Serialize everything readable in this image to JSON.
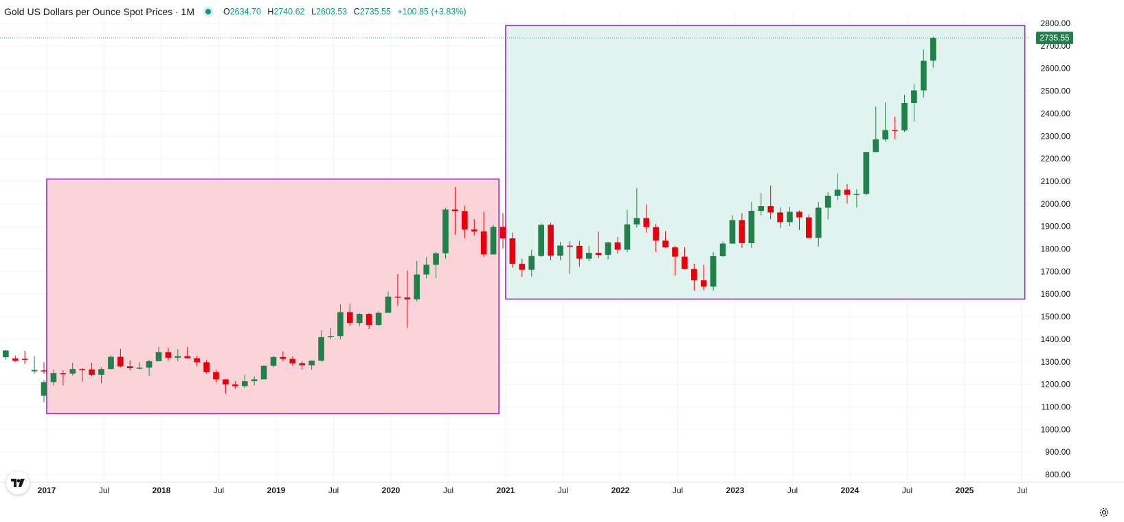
{
  "header": {
    "title": "Gold US Dollars per Ounce Spot Prices · 1M",
    "ohlc": {
      "o_label": "O",
      "o": "2634.70",
      "h_label": "H",
      "h": "2740.62",
      "l_label": "L",
      "l": "2603.53",
      "c_label": "C",
      "c": "2735.55",
      "change": "+100.85 (+3.83%)"
    }
  },
  "colors": {
    "up": "#22804a",
    "down": "#e6000b",
    "accent": "#089981",
    "rect_border": "#9c27b0",
    "rect1_fill": "#fad4d8",
    "rect2_fill": "#e0f3ef"
  },
  "icons": {
    "logo": "tradingview-logo-icon",
    "settings": "gear-icon"
  },
  "chart_data": {
    "type": "candlestick",
    "interval": "1M",
    "ylim": [
      800,
      2800
    ],
    "y_ticks": [
      "800.00",
      "900.00",
      "1000.00",
      "1100.00",
      "1200.00",
      "1300.00",
      "1400.00",
      "1500.00",
      "1600.00",
      "1700.00",
      "1800.00",
      "1900.00",
      "2000.00",
      "2100.00",
      "2200.00",
      "2300.00",
      "2400.00",
      "2500.00",
      "2600.00",
      "2700.00",
      "2800.00"
    ],
    "x_ticks": [
      {
        "label": "2017",
        "date": "2017-01",
        "bold": true
      },
      {
        "label": "Jul",
        "date": "2017-07",
        "bold": false
      },
      {
        "label": "2018",
        "date": "2018-01",
        "bold": true
      },
      {
        "label": "Jul",
        "date": "2018-07",
        "bold": false
      },
      {
        "label": "2019",
        "date": "2019-01",
        "bold": true
      },
      {
        "label": "Jul",
        "date": "2019-07",
        "bold": false
      },
      {
        "label": "2020",
        "date": "2020-01",
        "bold": true
      },
      {
        "label": "Jul",
        "date": "2020-07",
        "bold": false
      },
      {
        "label": "2021",
        "date": "2021-01",
        "bold": true
      },
      {
        "label": "Jul",
        "date": "2021-07",
        "bold": false
      },
      {
        "label": "2022",
        "date": "2022-01",
        "bold": true
      },
      {
        "label": "Jul",
        "date": "2022-07",
        "bold": false
      },
      {
        "label": "2023",
        "date": "2023-01",
        "bold": true
      },
      {
        "label": "Jul",
        "date": "2023-07",
        "bold": false
      },
      {
        "label": "2024",
        "date": "2024-01",
        "bold": true
      },
      {
        "label": "Jul",
        "date": "2024-07",
        "bold": false
      },
      {
        "label": "2025",
        "date": "2025-01",
        "bold": true
      },
      {
        "label": "Jul",
        "date": "2025-07",
        "bold": false
      }
    ],
    "last_price_label": "2735.55",
    "last_price": 2735.55,
    "rectangles": [
      {
        "start": "2017-01",
        "end": "2020-12",
        "top": 2110,
        "bottom": 1070,
        "style": "red"
      },
      {
        "start": "2021-01",
        "end": "2025-07",
        "top": 2790,
        "bottom": 1578,
        "style": "green"
      }
    ],
    "candles": [
      {
        "date": "2016-09",
        "o": 1320,
        "h": 1352,
        "l": 1310,
        "c": 1350
      },
      {
        "date": "2016-10",
        "o": 1315,
        "h": 1328,
        "l": 1300,
        "c": 1305
      },
      {
        "date": "2016-11",
        "o": 1313,
        "h": 1348,
        "l": 1290,
        "c": 1308
      },
      {
        "date": "2016-12",
        "o": 1258,
        "h": 1325,
        "l": 1248,
        "c": 1264
      },
      {
        "date": "2016-13",
        "o": 1262,
        "h": 1298,
        "l": 1248,
        "c": 1260
      },
      {
        "date": "2017-01",
        "o": 1150,
        "h": 1220,
        "l": 1120,
        "c": 1210
      },
      {
        "date": "2017-02",
        "o": 1210,
        "h": 1265,
        "l": 1195,
        "c": 1250
      },
      {
        "date": "2017-03",
        "o": 1250,
        "h": 1262,
        "l": 1195,
        "c": 1248
      },
      {
        "date": "2017-04",
        "o": 1248,
        "h": 1295,
        "l": 1240,
        "c": 1268
      },
      {
        "date": "2017-05",
        "o": 1268,
        "h": 1272,
        "l": 1212,
        "c": 1266
      },
      {
        "date": "2017-06",
        "o": 1266,
        "h": 1296,
        "l": 1236,
        "c": 1242
      },
      {
        "date": "2017-07",
        "o": 1242,
        "h": 1275,
        "l": 1205,
        "c": 1268
      },
      {
        "date": "2017-08",
        "o": 1268,
        "h": 1330,
        "l": 1266,
        "c": 1322
      },
      {
        "date": "2017-09",
        "o": 1322,
        "h": 1358,
        "l": 1275,
        "c": 1280
      },
      {
        "date": "2017-10",
        "o": 1280,
        "h": 1306,
        "l": 1262,
        "c": 1272
      },
      {
        "date": "2017-11",
        "o": 1272,
        "h": 1298,
        "l": 1265,
        "c": 1274
      },
      {
        "date": "2017-12",
        "o": 1274,
        "h": 1308,
        "l": 1237,
        "c": 1303
      },
      {
        "date": "2018-01",
        "o": 1303,
        "h": 1366,
        "l": 1302,
        "c": 1343
      },
      {
        "date": "2018-02",
        "o": 1343,
        "h": 1362,
        "l": 1306,
        "c": 1318
      },
      {
        "date": "2018-03",
        "o": 1318,
        "h": 1356,
        "l": 1302,
        "c": 1325
      },
      {
        "date": "2018-04",
        "o": 1325,
        "h": 1366,
        "l": 1314,
        "c": 1316
      },
      {
        "date": "2018-05",
        "o": 1316,
        "h": 1326,
        "l": 1282,
        "c": 1298
      },
      {
        "date": "2018-06",
        "o": 1298,
        "h": 1308,
        "l": 1248,
        "c": 1254
      },
      {
        "date": "2018-07",
        "o": 1254,
        "h": 1265,
        "l": 1210,
        "c": 1222
      },
      {
        "date": "2018-08",
        "o": 1222,
        "h": 1222,
        "l": 1160,
        "c": 1200
      },
      {
        "date": "2018-09",
        "o": 1200,
        "h": 1214,
        "l": 1180,
        "c": 1192
      },
      {
        "date": "2018-10",
        "o": 1192,
        "h": 1243,
        "l": 1183,
        "c": 1214
      },
      {
        "date": "2018-11",
        "o": 1214,
        "h": 1236,
        "l": 1196,
        "c": 1222
      },
      {
        "date": "2018-12",
        "o": 1222,
        "h": 1284,
        "l": 1222,
        "c": 1282
      },
      {
        "date": "2019-01",
        "o": 1282,
        "h": 1326,
        "l": 1276,
        "c": 1321
      },
      {
        "date": "2019-02",
        "o": 1321,
        "h": 1346,
        "l": 1303,
        "c": 1313
      },
      {
        "date": "2019-03",
        "o": 1313,
        "h": 1324,
        "l": 1282,
        "c": 1293
      },
      {
        "date": "2019-04",
        "o": 1293,
        "h": 1303,
        "l": 1266,
        "c": 1284
      },
      {
        "date": "2019-05",
        "o": 1284,
        "h": 1306,
        "l": 1266,
        "c": 1305
      },
      {
        "date": "2019-06",
        "o": 1305,
        "h": 1439,
        "l": 1300,
        "c": 1409
      },
      {
        "date": "2019-07",
        "o": 1409,
        "h": 1451,
        "l": 1400,
        "c": 1414
      },
      {
        "date": "2019-08",
        "o": 1414,
        "h": 1555,
        "l": 1400,
        "c": 1520
      },
      {
        "date": "2019-09",
        "o": 1520,
        "h": 1557,
        "l": 1458,
        "c": 1472
      },
      {
        "date": "2019-10",
        "o": 1472,
        "h": 1516,
        "l": 1458,
        "c": 1512
      },
      {
        "date": "2019-11",
        "o": 1512,
        "h": 1516,
        "l": 1445,
        "c": 1463
      },
      {
        "date": "2019-12",
        "o": 1463,
        "h": 1525,
        "l": 1459,
        "c": 1517
      },
      {
        "date": "2020-01",
        "o": 1517,
        "h": 1611,
        "l": 1517,
        "c": 1589
      },
      {
        "date": "2020-02",
        "o": 1589,
        "h": 1689,
        "l": 1548,
        "c": 1585
      },
      {
        "date": "2020-03",
        "o": 1585,
        "h": 1704,
        "l": 1451,
        "c": 1577
      },
      {
        "date": "2020-04",
        "o": 1577,
        "h": 1747,
        "l": 1568,
        "c": 1687
      },
      {
        "date": "2020-05",
        "o": 1687,
        "h": 1765,
        "l": 1670,
        "c": 1730
      },
      {
        "date": "2020-06",
        "o": 1730,
        "h": 1789,
        "l": 1671,
        "c": 1781
      },
      {
        "date": "2020-07",
        "o": 1781,
        "h": 1983,
        "l": 1757,
        "c": 1975
      },
      {
        "date": "2020-08",
        "o": 1975,
        "h": 2074,
        "l": 1863,
        "c": 1968
      },
      {
        "date": "2020-09",
        "o": 1968,
        "h": 1992,
        "l": 1848,
        "c": 1886
      },
      {
        "date": "2020-10",
        "o": 1886,
        "h": 1933,
        "l": 1860,
        "c": 1878
      },
      {
        "date": "2020-11",
        "o": 1878,
        "h": 1965,
        "l": 1764,
        "c": 1776
      },
      {
        "date": "2020-12",
        "o": 1776,
        "h": 1907,
        "l": 1775,
        "c": 1898
      },
      {
        "date": "2021-01",
        "o": 1898,
        "h": 1959,
        "l": 1802,
        "c": 1847
      },
      {
        "date": "2021-02",
        "o": 1847,
        "h": 1872,
        "l": 1717,
        "c": 1734
      },
      {
        "date": "2021-03",
        "o": 1734,
        "h": 1756,
        "l": 1676,
        "c": 1708
      },
      {
        "date": "2021-04",
        "o": 1708,
        "h": 1797,
        "l": 1678,
        "c": 1769
      },
      {
        "date": "2021-05",
        "o": 1769,
        "h": 1913,
        "l": 1765,
        "c": 1907
      },
      {
        "date": "2021-06",
        "o": 1907,
        "h": 1916,
        "l": 1750,
        "c": 1770
      },
      {
        "date": "2021-07",
        "o": 1770,
        "h": 1832,
        "l": 1750,
        "c": 1815
      },
      {
        "date": "2021-08",
        "o": 1815,
        "h": 1834,
        "l": 1690,
        "c": 1814
      },
      {
        "date": "2021-09",
        "o": 1814,
        "h": 1835,
        "l": 1721,
        "c": 1757
      },
      {
        "date": "2021-10",
        "o": 1757,
        "h": 1814,
        "l": 1746,
        "c": 1783
      },
      {
        "date": "2021-11",
        "o": 1783,
        "h": 1877,
        "l": 1759,
        "c": 1774
      },
      {
        "date": "2021-12",
        "o": 1774,
        "h": 1831,
        "l": 1753,
        "c": 1829
      },
      {
        "date": "2022-01",
        "o": 1829,
        "h": 1853,
        "l": 1780,
        "c": 1797
      },
      {
        "date": "2022-02",
        "o": 1797,
        "h": 1974,
        "l": 1786,
        "c": 1909
      },
      {
        "date": "2022-03",
        "o": 1909,
        "h": 2070,
        "l": 1895,
        "c": 1937
      },
      {
        "date": "2022-04",
        "o": 1937,
        "h": 1998,
        "l": 1872,
        "c": 1897
      },
      {
        "date": "2022-05",
        "o": 1897,
        "h": 1910,
        "l": 1787,
        "c": 1837
      },
      {
        "date": "2022-06",
        "o": 1837,
        "h": 1879,
        "l": 1805,
        "c": 1807
      },
      {
        "date": "2022-07",
        "o": 1807,
        "h": 1814,
        "l": 1681,
        "c": 1766
      },
      {
        "date": "2022-08",
        "o": 1766,
        "h": 1807,
        "l": 1709,
        "c": 1711
      },
      {
        "date": "2022-09",
        "o": 1711,
        "h": 1735,
        "l": 1615,
        "c": 1661
      },
      {
        "date": "2022-10",
        "o": 1661,
        "h": 1730,
        "l": 1617,
        "c": 1633
      },
      {
        "date": "2022-11",
        "o": 1633,
        "h": 1786,
        "l": 1616,
        "c": 1768
      },
      {
        "date": "2022-12",
        "o": 1768,
        "h": 1833,
        "l": 1765,
        "c": 1824
      },
      {
        "date": "2023-01",
        "o": 1824,
        "h": 1949,
        "l": 1823,
        "c": 1928
      },
      {
        "date": "2023-02",
        "o": 1928,
        "h": 1959,
        "l": 1805,
        "c": 1826
      },
      {
        "date": "2023-03",
        "o": 1826,
        "h": 2009,
        "l": 1804,
        "c": 1969
      },
      {
        "date": "2023-04",
        "o": 1969,
        "h": 2048,
        "l": 1949,
        "c": 1990
      },
      {
        "date": "2023-05",
        "o": 1990,
        "h": 2081,
        "l": 1932,
        "c": 1962
      },
      {
        "date": "2023-06",
        "o": 1962,
        "h": 1985,
        "l": 1893,
        "c": 1919
      },
      {
        "date": "2023-07",
        "o": 1919,
        "h": 1987,
        "l": 1902,
        "c": 1965
      },
      {
        "date": "2023-08",
        "o": 1965,
        "h": 1970,
        "l": 1884,
        "c": 1940
      },
      {
        "date": "2023-09",
        "o": 1940,
        "h": 1953,
        "l": 1848,
        "c": 1849
      },
      {
        "date": "2023-10",
        "o": 1849,
        "h": 2009,
        "l": 1810,
        "c": 1983
      },
      {
        "date": "2023-11",
        "o": 1983,
        "h": 2052,
        "l": 1931,
        "c": 2036
      },
      {
        "date": "2023-12",
        "o": 2036,
        "h": 2135,
        "l": 2016,
        "c": 2063
      },
      {
        "date": "2024-01",
        "o": 2063,
        "h": 2088,
        "l": 2001,
        "c": 2040
      },
      {
        "date": "2024-02",
        "o": 2040,
        "h": 2065,
        "l": 1984,
        "c": 2044
      },
      {
        "date": "2024-03",
        "o": 2044,
        "h": 2222,
        "l": 2039,
        "c": 2230
      },
      {
        "date": "2024-04",
        "o": 2230,
        "h": 2431,
        "l": 2228,
        "c": 2286
      },
      {
        "date": "2024-05",
        "o": 2286,
        "h": 2450,
        "l": 2277,
        "c": 2327
      },
      {
        "date": "2024-06",
        "o": 2327,
        "h": 2387,
        "l": 2286,
        "c": 2326
      },
      {
        "date": "2024-07",
        "o": 2326,
        "h": 2483,
        "l": 2318,
        "c": 2447
      },
      {
        "date": "2024-08",
        "o": 2447,
        "h": 2531,
        "l": 2364,
        "c": 2503
      },
      {
        "date": "2024-09",
        "o": 2503,
        "h": 2685,
        "l": 2471,
        "c": 2634
      },
      {
        "date": "2024-10",
        "o": 2634.7,
        "h": 2740.62,
        "l": 2603.53,
        "c": 2735.55
      }
    ]
  }
}
